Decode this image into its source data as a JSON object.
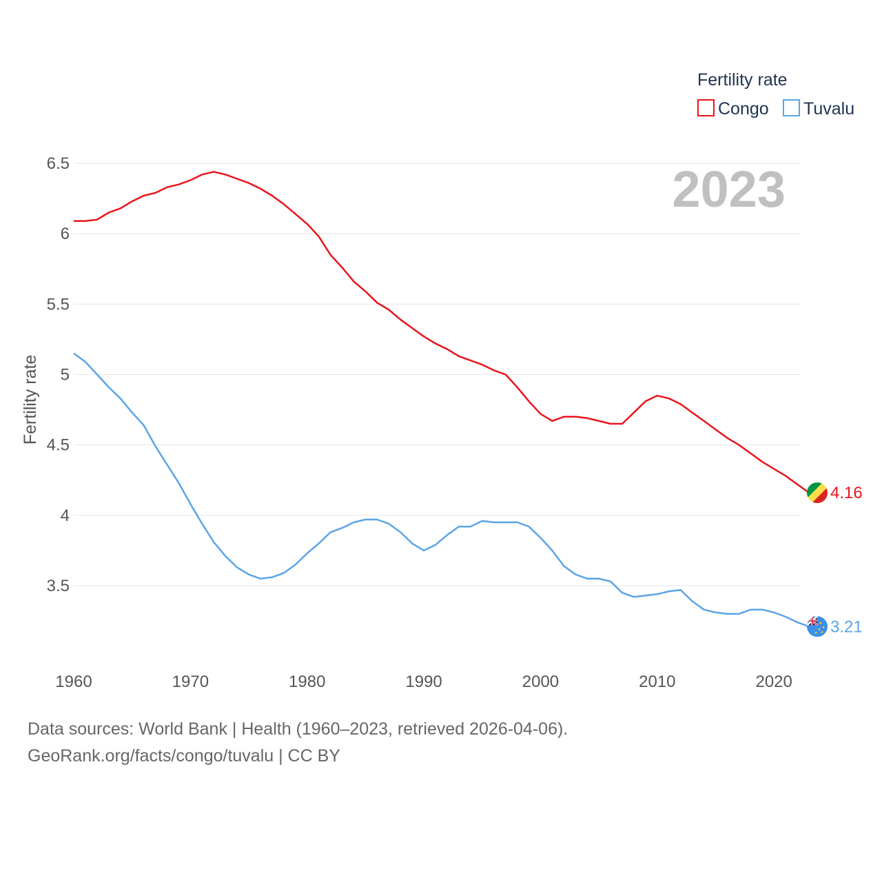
{
  "chart_data": {
    "type": "line",
    "legend_title": "Fertility rate",
    "ylabel": "Fertility rate",
    "year_label": "2023",
    "ylim": [
      3.0,
      6.6
    ],
    "y_ticks": [
      3.5,
      4,
      4.5,
      5,
      5.5,
      6,
      6.5
    ],
    "y_tick_labels": [
      "3.5",
      "4",
      "4.5",
      "5",
      "5.5",
      "6",
      "6.5"
    ],
    "xlim": [
      1960,
      2023
    ],
    "x_ticks": [
      1960,
      1970,
      1980,
      1990,
      2000,
      2010,
      2020
    ],
    "x_tick_labels": [
      "1960",
      "1970",
      "1980",
      "1990",
      "2000",
      "2010",
      "2020"
    ],
    "x": [
      1960,
      1961,
      1962,
      1963,
      1964,
      1965,
      1966,
      1967,
      1968,
      1969,
      1970,
      1971,
      1972,
      1973,
      1974,
      1975,
      1976,
      1977,
      1978,
      1979,
      1980,
      1981,
      1982,
      1983,
      1984,
      1985,
      1986,
      1987,
      1988,
      1989,
      1990,
      1991,
      1992,
      1993,
      1994,
      1995,
      1996,
      1997,
      1998,
      1999,
      2000,
      2001,
      2002,
      2003,
      2004,
      2005,
      2006,
      2007,
      2008,
      2009,
      2010,
      2011,
      2012,
      2013,
      2014,
      2015,
      2016,
      2017,
      2018,
      2019,
      2020,
      2021,
      2022,
      2023
    ],
    "series": [
      {
        "name": "Congo",
        "color": "#e8141c",
        "end_label": "4.16",
        "values": [
          6.09,
          6.09,
          6.1,
          6.15,
          6.18,
          6.23,
          6.27,
          6.29,
          6.33,
          6.35,
          6.38,
          6.42,
          6.44,
          6.42,
          6.39,
          6.36,
          6.32,
          6.27,
          6.21,
          6.14,
          6.07,
          5.98,
          5.85,
          5.76,
          5.66,
          5.59,
          5.51,
          5.46,
          5.39,
          5.33,
          5.27,
          5.22,
          5.18,
          5.13,
          5.1,
          5.07,
          5.03,
          5.0,
          4.91,
          4.81,
          4.72,
          4.67,
          4.7,
          4.7,
          4.69,
          4.67,
          4.65,
          4.65,
          4.73,
          4.81,
          4.85,
          4.83,
          4.79,
          4.73,
          4.67,
          4.61,
          4.55,
          4.5,
          4.44,
          4.38,
          4.33,
          4.28,
          4.22,
          4.16
        ]
      },
      {
        "name": "Tuvalu",
        "color": "#5aa4e6",
        "end_label": "3.21",
        "values": [
          5.15,
          5.09,
          5.0,
          4.91,
          4.83,
          4.73,
          4.64,
          4.49,
          4.36,
          4.23,
          4.08,
          3.94,
          3.81,
          3.71,
          3.63,
          3.58,
          3.55,
          3.56,
          3.59,
          3.65,
          3.73,
          3.8,
          3.88,
          3.91,
          3.95,
          3.97,
          3.97,
          3.94,
          3.88,
          3.8,
          3.75,
          3.79,
          3.86,
          3.92,
          3.92,
          3.96,
          3.95,
          3.95,
          3.95,
          3.92,
          3.84,
          3.75,
          3.64,
          3.58,
          3.55,
          3.55,
          3.53,
          3.45,
          3.42,
          3.43,
          3.44,
          3.46,
          3.47,
          3.39,
          3.33,
          3.31,
          3.3,
          3.3,
          3.33,
          3.33,
          3.31,
          3.28,
          3.24,
          3.21
        ]
      }
    ]
  },
  "footer": {
    "line1": "Data sources: World Bank | Health (1960–2023, retrieved 2026-04-06).",
    "line2": "GeoRank.org/facts/congo/tuvalu | CC BY"
  }
}
